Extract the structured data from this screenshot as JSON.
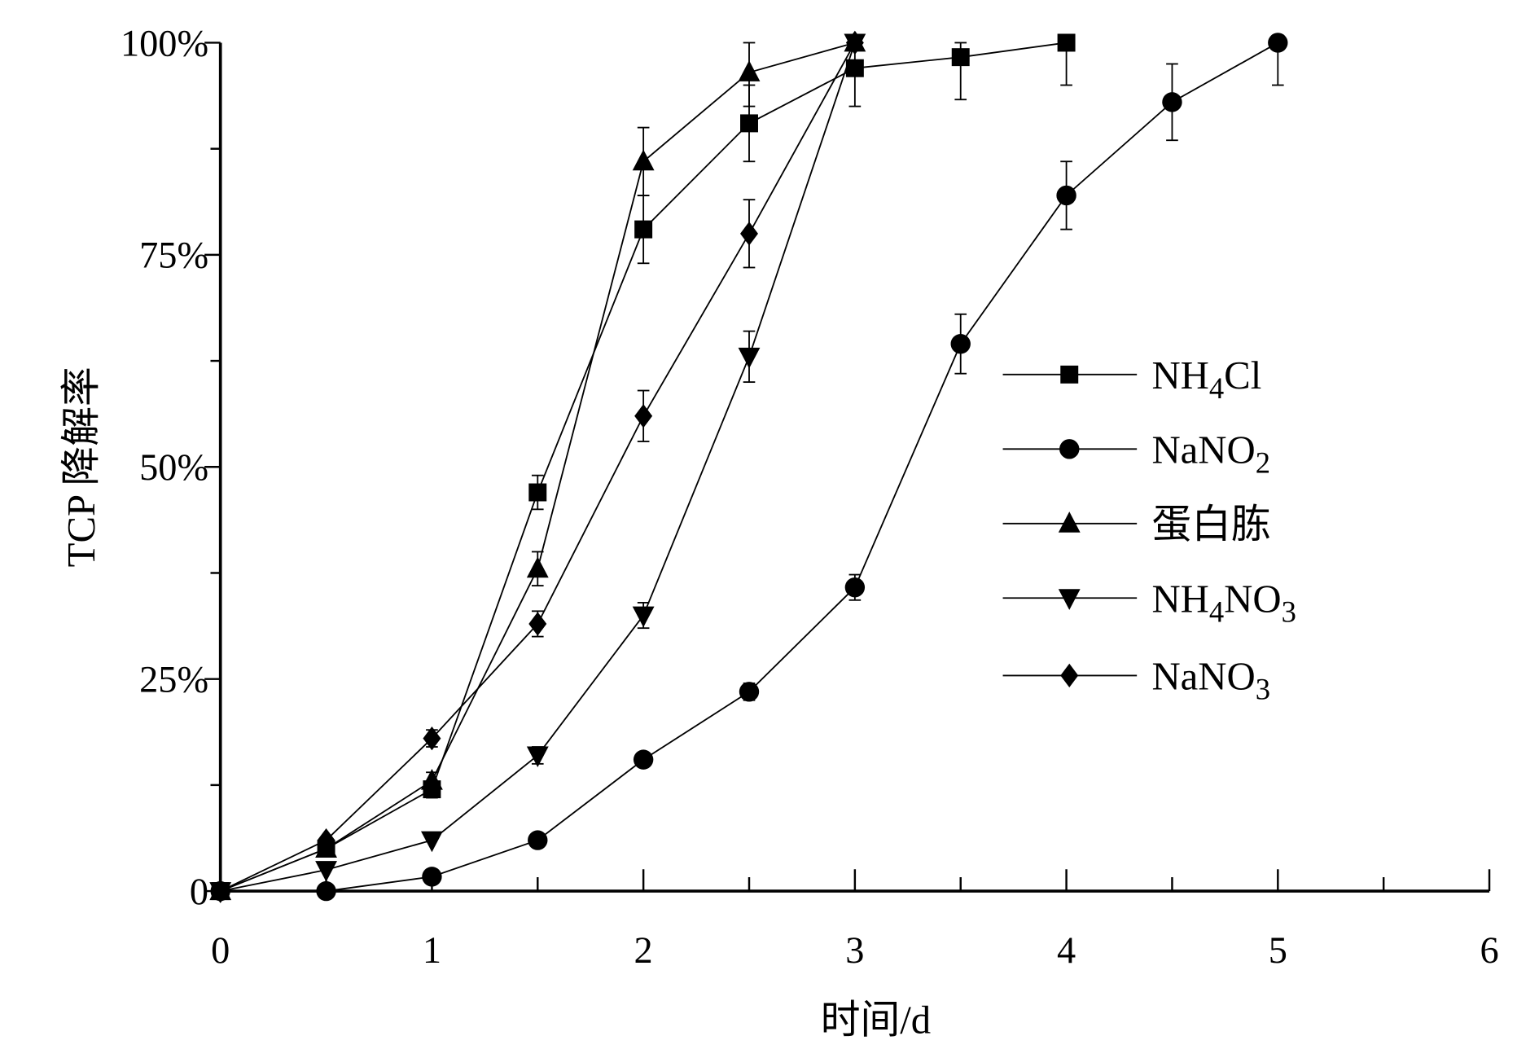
{
  "chart_data": {
    "type": "line",
    "title": "",
    "xlabel": "时间/d",
    "ylabel": "TCP 降解率",
    "xlim": [
      0,
      6
    ],
    "ylim": [
      0,
      100
    ],
    "xticks": [
      "0",
      "1",
      "2",
      "3",
      "4",
      "5",
      "6"
    ],
    "yticks": [
      {
        "v": 0,
        "label": "0"
      },
      {
        "v": 25,
        "label": "25%"
      },
      {
        "v": 50,
        "label": "50%"
      },
      {
        "v": 75,
        "label": "75%"
      },
      {
        "v": 100,
        "label": "100%"
      }
    ],
    "grid": false,
    "legend_position": "right-middle",
    "series": [
      {
        "name": "NH4Cl",
        "base": "NH",
        "sub": "4",
        "rest": "Cl",
        "marker": "square",
        "x": [
          0,
          0.5,
          1,
          1.5,
          2,
          2.5,
          3,
          3.5,
          4
        ],
        "y": [
          0,
          5,
          12,
          47,
          78,
          90.5,
          97,
          98.3,
          100
        ],
        "err": [
          0,
          0.5,
          1,
          2,
          4,
          4.5,
          4.5,
          5,
          5
        ]
      },
      {
        "name": "NaNO2",
        "base": "NaNO",
        "sub": "2",
        "rest": "",
        "marker": "circle",
        "x": [
          0,
          0.5,
          1,
          1.5,
          2,
          2.5,
          3,
          3.5,
          4,
          4.5,
          5
        ],
        "y": [
          0,
          0,
          1.7,
          6,
          15.5,
          23.5,
          35.8,
          64.5,
          82,
          93,
          100
        ],
        "err": [
          0,
          0,
          0.5,
          0.5,
          0.5,
          1,
          1.5,
          3.5,
          4,
          4.5,
          5
        ]
      },
      {
        "name": "蛋白胨",
        "base": "蛋白胨",
        "sub": "",
        "rest": "",
        "marker": "triangle-up",
        "x": [
          0,
          0.5,
          1,
          1.5,
          2,
          2.5,
          3
        ],
        "y": [
          0,
          5,
          13,
          38,
          86,
          96.5,
          100
        ],
        "err": [
          0,
          0.5,
          1,
          2,
          4,
          4,
          0.5
        ]
      },
      {
        "name": "NH4NO3",
        "base": "NH",
        "sub": "4",
        "rest": "NO",
        "sub2": "3",
        "marker": "triangle-down",
        "x": [
          0,
          0.5,
          1,
          1.5,
          2,
          2.5,
          3
        ],
        "y": [
          0,
          2.5,
          6,
          16,
          32.5,
          63,
          100
        ],
        "err": [
          0,
          0.5,
          0.5,
          1,
          1.5,
          3,
          0.5
        ]
      },
      {
        "name": "NaNO3",
        "base": "NaNO",
        "sub": "3",
        "rest": "",
        "marker": "diamond",
        "x": [
          0,
          0.5,
          1,
          1.5,
          2,
          2.5,
          3
        ],
        "y": [
          0,
          6,
          18,
          31.5,
          56,
          77.5,
          100
        ],
        "err": [
          0,
          0.5,
          1,
          1.5,
          3,
          4,
          0.5
        ]
      }
    ]
  }
}
